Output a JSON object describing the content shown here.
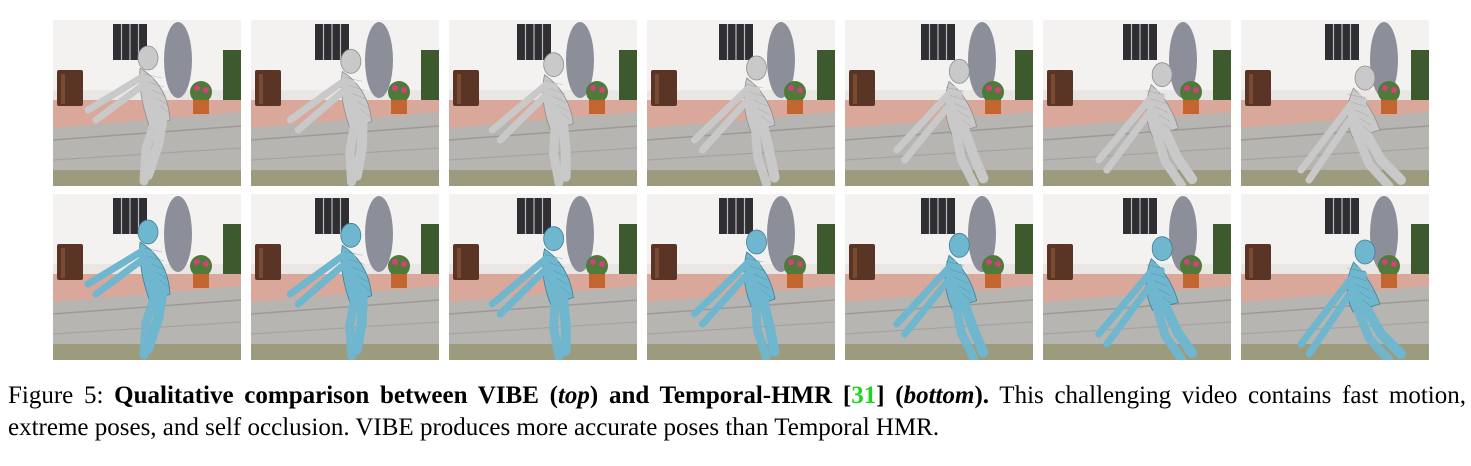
{
  "figure": {
    "rows": [
      {
        "name": "vibe",
        "body_color": "#c9c9c9",
        "mesh_color": "#8f8f8f"
      },
      {
        "name": "temporal-hmr",
        "body_color": "#6fb6cf",
        "mesh_color": "#3f7f97"
      }
    ],
    "frame_count": 7
  },
  "caption": {
    "label": "Figure 5:",
    "bold_1": "Qualitative comparison between VIBE (",
    "italic_1": "top",
    "bold_2": ") and Temporal-HMR [",
    "cite": "31",
    "bold_3": "] (",
    "italic_2": "bottom",
    "bold_4": ").",
    "text": " This challenging video contains fast motion, extreme poses, and self occlusion. VIBE produces more accurate poses than Temporal HMR."
  }
}
